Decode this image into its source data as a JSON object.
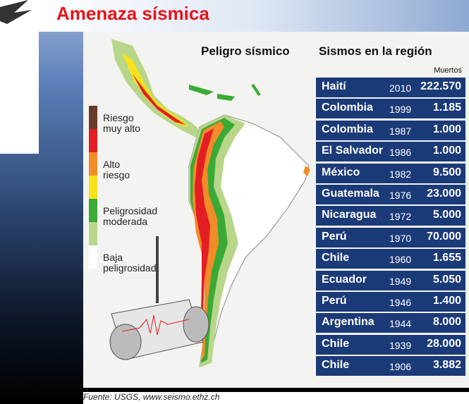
{
  "header": {
    "title": "Amenaza sísmica"
  },
  "infographic": {
    "map_title": "Peligro sísmico",
    "table_title": "Sismos en la región",
    "column_label": "Muertos",
    "legend": [
      {
        "lines": [
          "Riesgo",
          "muy alto"
        ],
        "colors": [
          "#6b3a2a",
          "#e31e24"
        ]
      },
      {
        "lines": [
          "Alto",
          "riesgo"
        ],
        "colors": [
          "#f28c28",
          "#f7e11b"
        ]
      },
      {
        "lines": [
          "Peligrosidad",
          "moderada"
        ],
        "colors": [
          "#3aa935",
          "#b8d68a"
        ]
      },
      {
        "lines": [
          "Baja",
          "peligrosidad"
        ],
        "colors": [
          "#ffffff"
        ]
      }
    ],
    "table": {
      "rows": [
        [
          "Haití",
          2010,
          "222.570"
        ],
        [
          "Colombia",
          1999,
          "1.185"
        ],
        [
          "Colombia",
          1987,
          "1.000"
        ],
        [
          "El Salvador",
          1986,
          "1.000"
        ],
        [
          "México",
          1982,
          "9.500"
        ],
        [
          "Guatemala",
          1976,
          "23.000"
        ],
        [
          "Nicaragua",
          1972,
          "5.000"
        ],
        [
          "Perú",
          1970,
          "70.000"
        ],
        [
          "Chile",
          1960,
          "1.655"
        ],
        [
          "Ecuador",
          1949,
          "5.050"
        ],
        [
          "Perú",
          1946,
          "1.400"
        ],
        [
          "Argentina",
          1944,
          "8.000"
        ],
        [
          "Chile",
          1939,
          "28.000"
        ],
        [
          "Chile",
          1906,
          "3.882"
        ]
      ]
    }
  },
  "footer": {
    "source": "Fuente: USGS, www.seismo.ethz.ch"
  }
}
